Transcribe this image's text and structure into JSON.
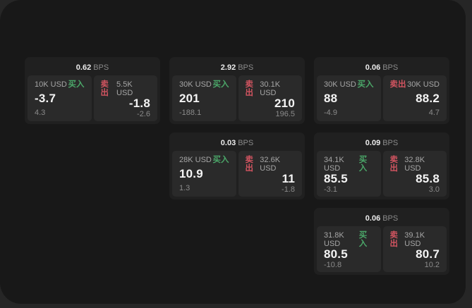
{
  "window": {
    "bps_unit": "BPS"
  },
  "colors": {
    "buy_green": "#4BA769",
    "sell_red": "#D15460",
    "card_bg": "#202020",
    "tile_bg": "#2A2A2A",
    "panel_bg": "#181818"
  },
  "side_labels": {
    "buy": "买入",
    "sell": "卖出"
  },
  "cards": [
    {
      "bps": "0.62",
      "buy": {
        "size": "10K USD",
        "price": "-3.7",
        "change": "4.3"
      },
      "sell": {
        "size": "5.5K USD",
        "price": "-1.8",
        "change": "-2.6"
      }
    },
    {
      "bps": "2.92",
      "buy": {
        "size": "30K USD",
        "price": "201",
        "change": "-188.1"
      },
      "sell": {
        "size": "30.1K USD",
        "price": "210",
        "change": "196.5"
      }
    },
    {
      "bps": "0.06",
      "buy": {
        "size": "30K USD",
        "price": "88",
        "change": "-4.9"
      },
      "sell": {
        "size": "30K USD",
        "price": "88.2",
        "change": "4.7"
      }
    },
    {
      "bps": "0.03",
      "buy": {
        "size": "28K USD",
        "price": "10.9",
        "change": "1.3"
      },
      "sell": {
        "size": "32.6K USD",
        "price": "11",
        "change": "-1.8"
      }
    },
    {
      "bps": "0.09",
      "buy": {
        "size": "34.1K USD",
        "price": "85.5",
        "change": "-3.1"
      },
      "sell": {
        "size": "32.8K USD",
        "price": "85.8",
        "change": "3.0"
      }
    },
    {
      "bps": "0.06",
      "buy": {
        "size": "31.8K USD",
        "price": "80.5",
        "change": "-10.8"
      },
      "sell": {
        "size": "39.1K USD",
        "price": "80.7",
        "change": "10.2"
      }
    }
  ]
}
